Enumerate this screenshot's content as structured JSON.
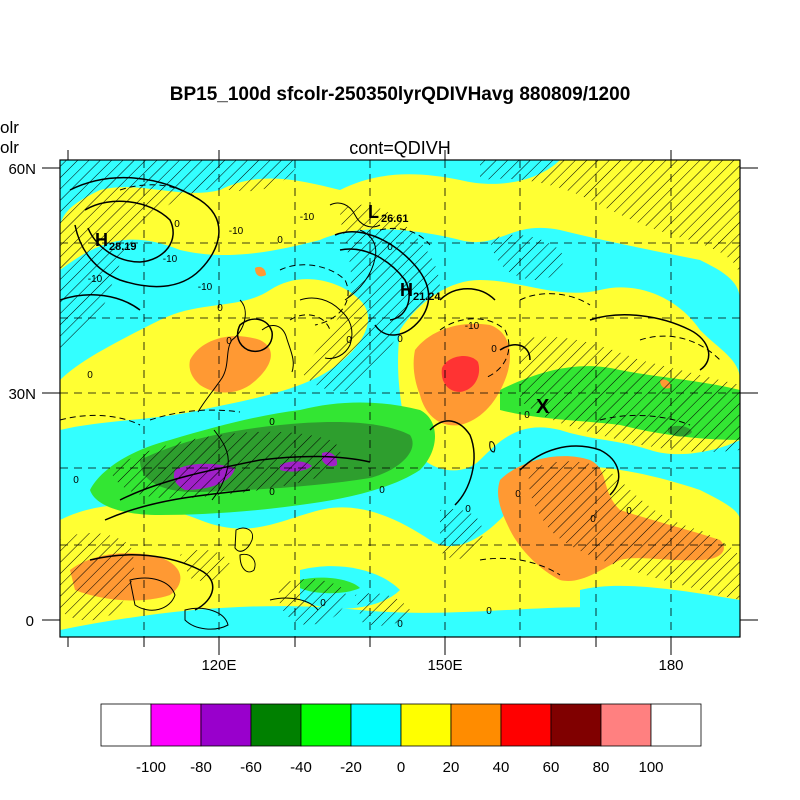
{
  "title": "BP15_100d sfcolr-250350lyrQDIVHavg  880809/1200",
  "subtitle": "cont=QDIVH",
  "left_labels": [
    "olr",
    "olr"
  ],
  "map": {
    "lat_labels": [
      "60N",
      "30N",
      "0"
    ],
    "lon_labels": [
      "120E",
      "150E",
      "180"
    ],
    "pressure_centers": [
      {
        "letter": "H",
        "value": "28.19"
      },
      {
        "letter": "L",
        "value": "26.61"
      },
      {
        "letter": "H",
        "value": "21.24"
      }
    ],
    "marker": "X",
    "contour_labels": [
      "0",
      "-10",
      "-10",
      "-10",
      "0",
      "0",
      "-10",
      "0",
      "0",
      "0",
      "0",
      "0",
      "-10",
      "0",
      "0",
      "-10",
      "0",
      "0",
      "0",
      "0",
      "0",
      "0",
      "0",
      "0",
      "0",
      "0",
      "0"
    ]
  },
  "colorbar": {
    "labels": [
      "-100",
      "-80",
      "-60",
      "-40",
      "-20",
      "0",
      "20",
      "40",
      "60",
      "80",
      "100"
    ],
    "colors": [
      "#ffffff",
      "#ff00ff",
      "#9900cc",
      "#008000",
      "#00ff00",
      "#00ffff",
      "#ffff00",
      "#ff8c00",
      "#ff0000",
      "#800000",
      "#ff8080",
      "#ffffff"
    ]
  },
  "colors": {
    "cyan": "#33ffff",
    "yellow": "#ffff33",
    "orange": "#ff9933",
    "green": "#33e633",
    "darkgreen": "#2e9e2e",
    "purple": "#a020c8",
    "red": "#ff3333"
  }
}
